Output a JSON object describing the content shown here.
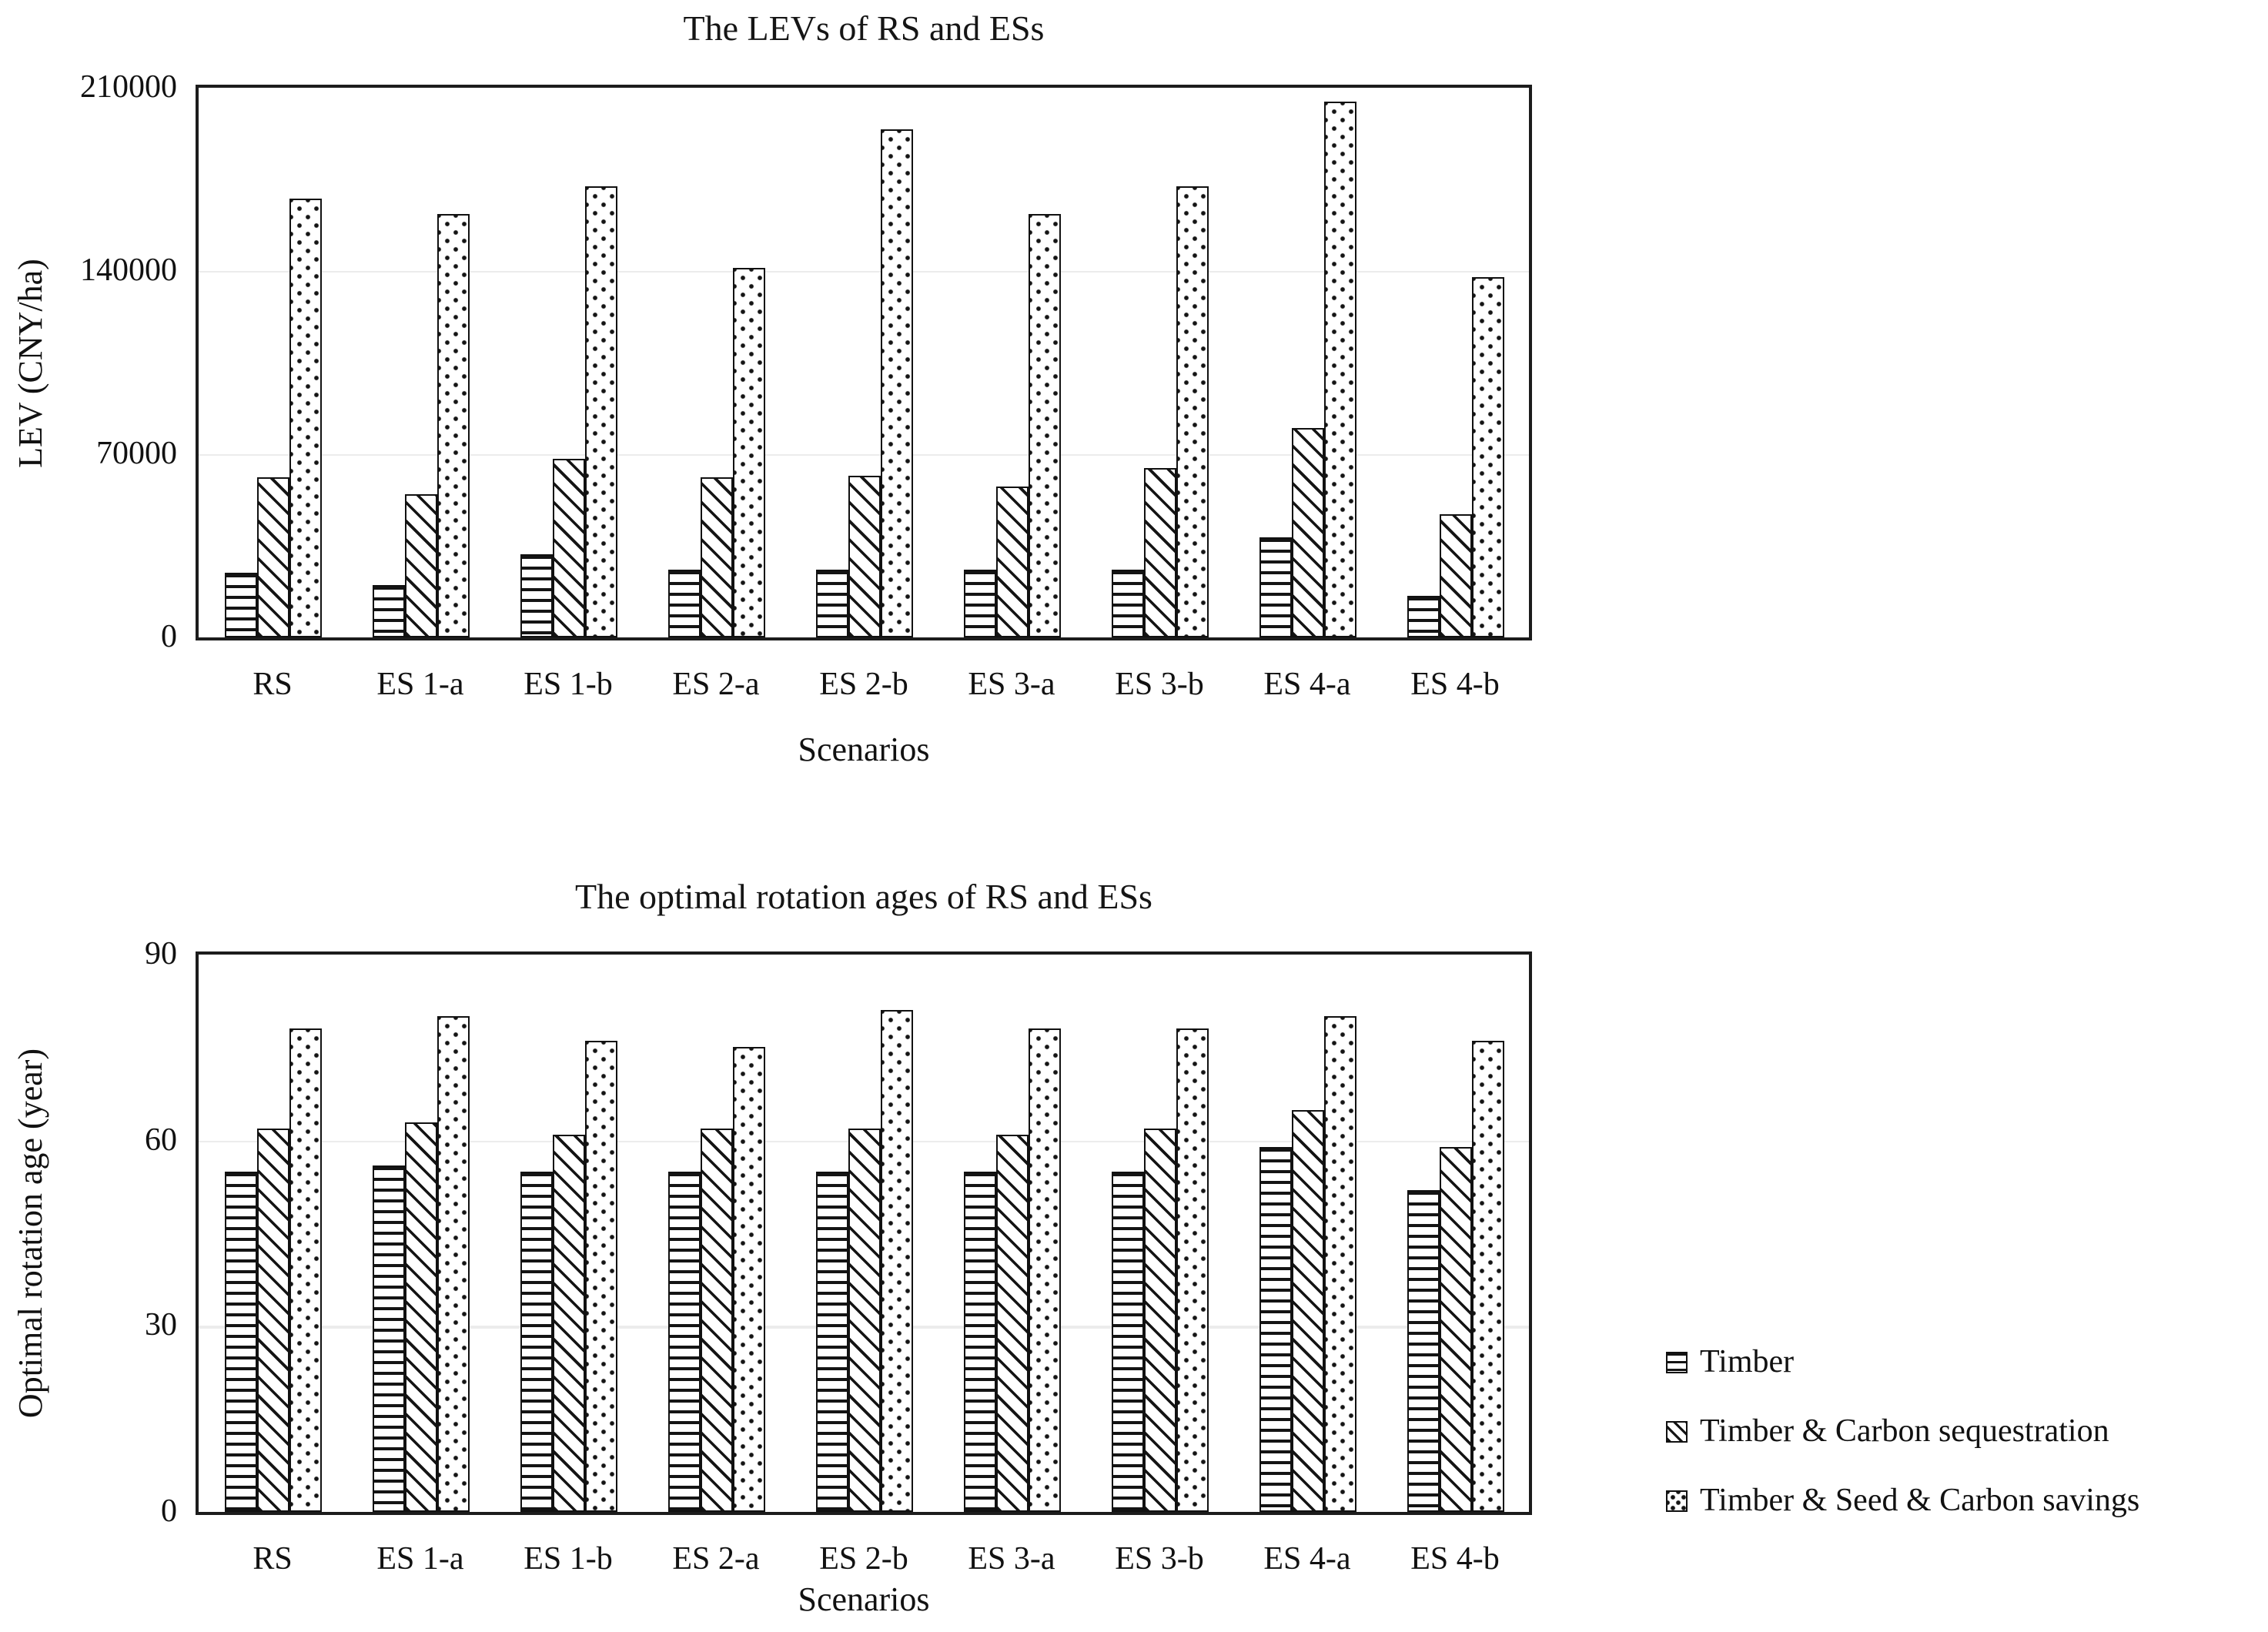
{
  "figure": {
    "background": "#ffffff",
    "ink_color": "#111111",
    "gridline_color": "#ececec"
  },
  "legend": {
    "position": "outside-right-bottom",
    "items": [
      {
        "label": "Timber",
        "swatch_icon": "horizontal-lines-pattern-swatch"
      },
      {
        "label": "Timber & Carbon sequestration",
        "swatch_icon": "diagonal-lines-pattern-swatch"
      },
      {
        "label": "Timber & Seed & Carbon savings",
        "swatch_icon": "dots-pattern-swatch"
      }
    ]
  },
  "chart_data": [
    {
      "type": "bar",
      "title": "The LEVs of RS and ESs",
      "xlabel": "Scenarios",
      "ylabel": "LEV (CNY/ha)",
      "ylim": [
        0,
        210000
      ],
      "yticks": [
        0,
        70000,
        140000,
        210000
      ],
      "grid": "light horizontal gridlines at 70000 and 140000",
      "categories": [
        "RS",
        "ES 1-a",
        "ES 1-b",
        "ES 2-a",
        "ES 2-b",
        "ES 3-a",
        "ES 3-b",
        "ES 4-a",
        "ES 4-b"
      ],
      "series": [
        {
          "name": "Timber",
          "pattern": "horizontal-lines",
          "values": [
            25000,
            20000,
            32000,
            26000,
            26000,
            26000,
            26000,
            38500,
            16000
          ]
        },
        {
          "name": "Timber & Carbon sequestration",
          "pattern": "diagonal-lines",
          "values": [
            61000,
            55000,
            68000,
            61000,
            61500,
            57500,
            65000,
            80000,
            47000
          ]
        },
        {
          "name": "Timber & Seed & Carbon savings",
          "pattern": "dots",
          "values": [
            167500,
            161500,
            172500,
            141000,
            194000,
            161500,
            172500,
            205000,
            137500
          ]
        }
      ]
    },
    {
      "type": "bar",
      "title": "The optimal rotation ages of RS and ESs",
      "xlabel": "Scenarios",
      "ylabel": "Optimal rotation age (year)",
      "ylim": [
        0,
        90
      ],
      "yticks": [
        0,
        30,
        60,
        90
      ],
      "grid": "light horizontal gridlines at 30 and 60",
      "categories": [
        "RS",
        "ES 1-a",
        "ES 1-b",
        "ES 2-a",
        "ES 2-b",
        "ES 3-a",
        "ES 3-b",
        "ES 4-a",
        "ES 4-b"
      ],
      "series": [
        {
          "name": "Timber",
          "pattern": "horizontal-lines",
          "values": [
            55,
            56,
            55,
            55,
            55,
            55,
            55,
            59,
            52
          ]
        },
        {
          "name": "Timber & Carbon sequestration",
          "pattern": "diagonal-lines",
          "values": [
            62,
            63,
            61,
            62,
            62,
            61,
            62,
            65,
            59
          ]
        },
        {
          "name": "Timber & Seed & Carbon savings",
          "pattern": "dots",
          "values": [
            78,
            80,
            76,
            75,
            81,
            78,
            78,
            80,
            76
          ]
        }
      ]
    }
  ]
}
